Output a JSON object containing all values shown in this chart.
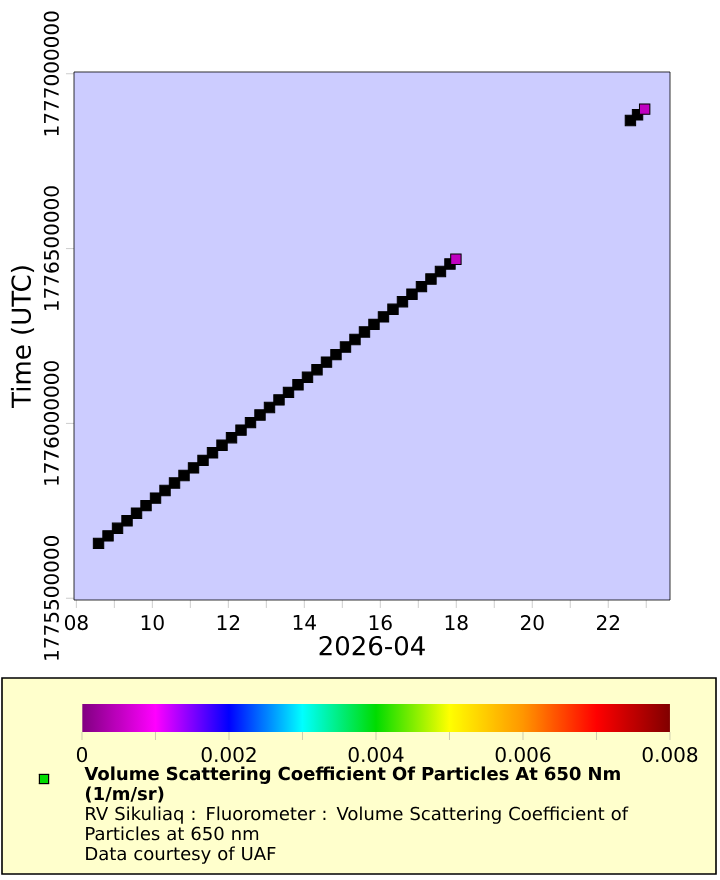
{
  "chart_data": {
    "type": "scatter",
    "xlabel": "2026-04",
    "ylabel": "Time (UTC)",
    "clabel": "Volume Scattering Coefficient Of Particles At 650 Nm (1/m/sr)",
    "annotations": [
      "RV Sikuliaq : Fluorometer : Volume Scattering Coefficient of Particles at 650 nm",
      "Data courtesy of UAF"
    ],
    "x": [
      "2026-04-08T14:00",
      "2026-04-08T20:00",
      "2026-04-09T02:00",
      "2026-04-09T08:00",
      "2026-04-09T14:00",
      "2026-04-09T20:00",
      "2026-04-10T02:00",
      "2026-04-10T08:00",
      "2026-04-10T14:00",
      "2026-04-10T20:00",
      "2026-04-11T02:00",
      "2026-04-11T08:00",
      "2026-04-11T14:00",
      "2026-04-11T20:00",
      "2026-04-12T02:00",
      "2026-04-12T08:00",
      "2026-04-12T14:00",
      "2026-04-12T20:00",
      "2026-04-13T02:00",
      "2026-04-13T08:00",
      "2026-04-13T14:00",
      "2026-04-13T20:00",
      "2026-04-14T02:00",
      "2026-04-14T08:00",
      "2026-04-14T14:00",
      "2026-04-14T20:00",
      "2026-04-15T02:00",
      "2026-04-15T08:00",
      "2026-04-15T14:00",
      "2026-04-15T20:00",
      "2026-04-16T02:00",
      "2026-04-16T08:00",
      "2026-04-16T14:00",
      "2026-04-16T20:00",
      "2026-04-17T02:00",
      "2026-04-17T08:00",
      "2026-04-17T14:00",
      "2026-04-17T20:00",
      "2026-04-17T23:45",
      "2026-04-22T14:00",
      "2026-04-22T18:30",
      "2026-04-22T23:00"
    ],
    "values": [
      1775656800,
      1775678400,
      1775700000,
      1775721600,
      1775743200,
      1775764800,
      1775786400,
      1775808000,
      1775829600,
      1775851200,
      1775872800,
      1775894400,
      1775916000,
      1775937600,
      1775959200,
      1775980800,
      1776002400,
      1776024000,
      1776045600,
      1776067200,
      1776088800,
      1776110400,
      1776132000,
      1776153600,
      1776175200,
      1776196800,
      1776218400,
      1776240000,
      1776261600,
      1776283200,
      1776304800,
      1776326400,
      1776348000,
      1776369600,
      1776391200,
      1776412800,
      1776434400,
      1776456000,
      1776469500,
      1776866400,
      1776882600,
      1776898800
    ],
    "colors": [
      "#000000",
      "#000000",
      "#000000",
      "#000000",
      "#000000",
      "#000000",
      "#000000",
      "#000000",
      "#000000",
      "#000000",
      "#000000",
      "#000000",
      "#000000",
      "#000000",
      "#000000",
      "#000000",
      "#000000",
      "#000000",
      "#000000",
      "#000000",
      "#000000",
      "#000000",
      "#000000",
      "#000000",
      "#000000",
      "#000000",
      "#000000",
      "#000000",
      "#000000",
      "#000000",
      "#000000",
      "#000000",
      "#000000",
      "#000000",
      "#000000",
      "#000000",
      "#000000",
      "#000000",
      "#c000c0",
      "#000000",
      "#000000",
      "#c000c0"
    ],
    "marker": "square",
    "xlim": [
      "2026-04-07T22:30",
      "2026-04-23T15:00"
    ],
    "ylim": [
      1775495000,
      1777005000
    ],
    "xticks": [
      {
        "value": "2026-04-08",
        "label": "08"
      },
      {
        "value": "2026-04-09",
        "label": null
      },
      {
        "value": "2026-04-10",
        "label": "10"
      },
      {
        "value": "2026-04-11",
        "label": null
      },
      {
        "value": "2026-04-12",
        "label": "12"
      },
      {
        "value": "2026-04-13",
        "label": null
      },
      {
        "value": "2026-04-14",
        "label": "14"
      },
      {
        "value": "2026-04-15",
        "label": null
      },
      {
        "value": "2026-04-16",
        "label": "16"
      },
      {
        "value": "2026-04-17",
        "label": null
      },
      {
        "value": "2026-04-18",
        "label": "18"
      },
      {
        "value": "2026-04-19",
        "label": null
      },
      {
        "value": "2026-04-20",
        "label": "20"
      },
      {
        "value": "2026-04-21",
        "label": null
      },
      {
        "value": "2026-04-22",
        "label": "22"
      },
      {
        "value": "2026-04-23",
        "label": null
      }
    ],
    "yticks": [
      1775500000,
      1776000000,
      1776500000,
      1777000000
    ],
    "clim": [
      0,
      0.008
    ],
    "cticks": [
      0,
      {
        "value": 0.001,
        "label": null
      },
      0.002,
      {
        "value": 0.003,
        "label": null
      },
      0.004,
      {
        "value": 0.005,
        "label": null
      },
      0.006,
      {
        "value": 0.007,
        "label": null
      },
      0.008
    ]
  }
}
